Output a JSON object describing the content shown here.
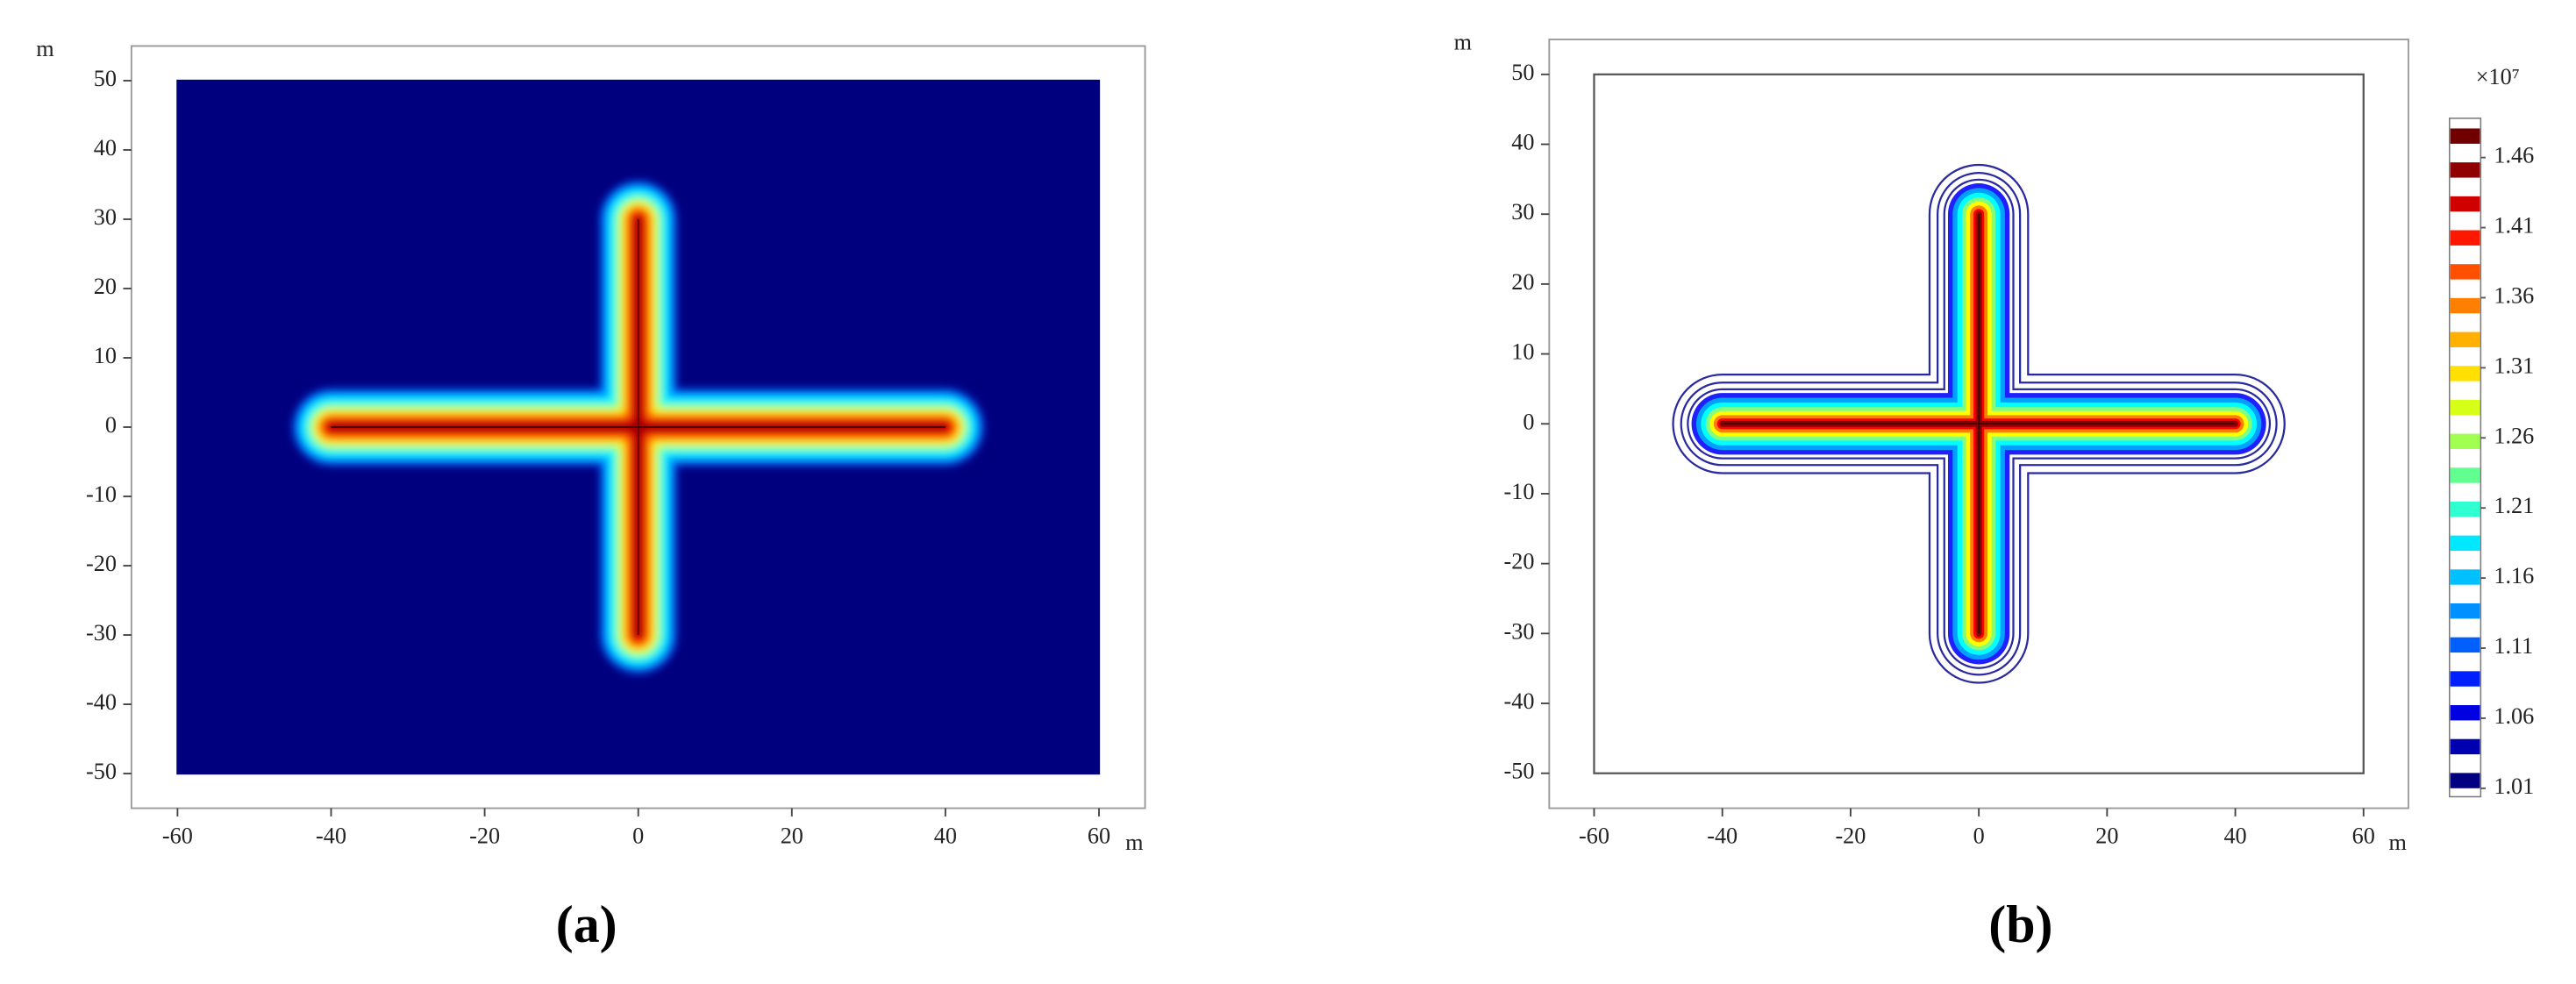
{
  "chart_data": [
    {
      "type": "heatmap",
      "caption": "(a)",
      "x_label": "m",
      "y_label": "m",
      "xlim": [
        -66,
        66
      ],
      "ylim": [
        -55,
        55
      ],
      "xticks": [
        -60,
        -40,
        -20,
        0,
        20,
        40,
        60
      ],
      "yticks": [
        -50,
        -40,
        -30,
        -20,
        -10,
        0,
        10,
        20,
        30,
        40,
        50
      ],
      "domain": {
        "x": [
          -60,
          60
        ],
        "y": [
          -50,
          50
        ],
        "fill": "#00007f",
        "stroke": "#00007f"
      },
      "fractures": [
        {
          "x": [
            -40,
            40
          ],
          "y": [
            0,
            0
          ]
        },
        {
          "x": [
            0,
            0
          ],
          "y": [
            -30,
            30
          ]
        }
      ],
      "smooth": true,
      "contours": [
        {
          "width": 5.2,
          "color": "#0060ff",
          "filled": true
        },
        {
          "width": 4.5,
          "color": "#00bfff",
          "filled": true
        },
        {
          "width": 3.8,
          "color": "#00ffff",
          "filled": true
        },
        {
          "width": 3.1,
          "color": "#7fff7f",
          "filled": true
        },
        {
          "width": 2.5,
          "color": "#ffff00",
          "filled": true
        },
        {
          "width": 1.9,
          "color": "#ff8000",
          "filled": true
        },
        {
          "width": 1.3,
          "color": "#ff0000",
          "filled": true
        },
        {
          "width": 0.7,
          "color": "#a00000",
          "filled": true
        }
      ]
    },
    {
      "type": "contour",
      "caption": "(b)",
      "x_label": "m",
      "y_label": "m",
      "xlim": [
        -67,
        67
      ],
      "ylim": [
        -55,
        55
      ],
      "xticks": [
        -60,
        -40,
        -20,
        0,
        20,
        40,
        60
      ],
      "yticks": [
        -50,
        -40,
        -30,
        -20,
        -10,
        0,
        10,
        20,
        30,
        40,
        50
      ],
      "domain": {
        "x": [
          -60,
          60
        ],
        "y": [
          -50,
          50
        ],
        "fill": "#ffffff",
        "stroke": "#555555"
      },
      "fractures": [
        {
          "x": [
            -40,
            40
          ],
          "y": [
            0,
            0
          ]
        },
        {
          "x": [
            0,
            0
          ],
          "y": [
            -30,
            30
          ]
        }
      ],
      "smooth": false,
      "contours": [
        {
          "width": 7.5,
          "color": "#2a2aa0",
          "filled": false
        },
        {
          "width": 6.3,
          "color": "#2a2aa0",
          "filled": false
        },
        {
          "width": 5.3,
          "color": "#2a2aa0",
          "filled": false
        },
        {
          "width": 4.6,
          "color": "#2020ff",
          "filled": true
        },
        {
          "width": 3.9,
          "color": "#00a0ff",
          "filled": true
        },
        {
          "width": 3.2,
          "color": "#00ffff",
          "filled": true
        },
        {
          "width": 2.5,
          "color": "#80ff80",
          "filled": true
        },
        {
          "width": 1.9,
          "color": "#ffff00",
          "filled": true
        },
        {
          "width": 1.3,
          "color": "#ff8000",
          "filled": true
        },
        {
          "width": 0.8,
          "color": "#ff0000",
          "filled": true
        },
        {
          "width": 0.45,
          "color": "#8b0000",
          "filled": true
        }
      ],
      "colorbar": {
        "multiplier": "×10⁷",
        "lim": [
          1.004,
          1.488
        ],
        "ticks": [
          1.01,
          1.06,
          1.11,
          1.16,
          1.21,
          1.26,
          1.31,
          1.36,
          1.41,
          1.46
        ],
        "colors": [
          "#000080",
          "#0000b0",
          "#0000e0",
          "#0020ff",
          "#0060ff",
          "#0090ff",
          "#00c0ff",
          "#00e8ff",
          "#30ffd0",
          "#60ff90",
          "#a0ff50",
          "#d8ff18",
          "#ffe000",
          "#ffb000",
          "#ff8000",
          "#ff5000",
          "#ff1800",
          "#d00000",
          "#900000",
          "#700000"
        ]
      }
    }
  ]
}
